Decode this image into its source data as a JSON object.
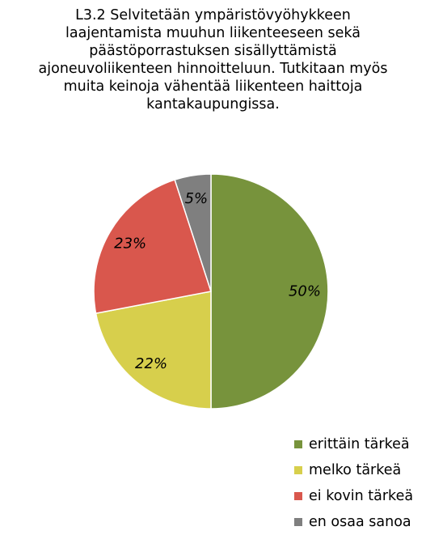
{
  "chart_data": {
    "type": "pie",
    "title_lines": [
      "L3.2 Selvitetään ympäristövyöhykkeen",
      "laajentamista muuhun liikenteeseen sekä",
      "päästöporrastuksen sisällyttämistä",
      "ajoneuvoliikenteen hinnoitteluun. Tutkitaan myös",
      "muita keinoja vähentää liikenteen haittoja",
      "kantakaupungissa."
    ],
    "categories": [
      "erittäin tärkeä",
      "melko tärkeä",
      "ei kovin tärkeä",
      "en osaa sanoa"
    ],
    "values": [
      50,
      22,
      23,
      5
    ],
    "data_labels": [
      "50%",
      "22%",
      "23%",
      "5%"
    ],
    "colors": [
      "#77933c",
      "#d7cf4c",
      "#d9574d",
      "#7f7f7f"
    ],
    "start_angle": "12 o'clock",
    "direction": "clockwise",
    "legend_position": "bottom-right"
  }
}
